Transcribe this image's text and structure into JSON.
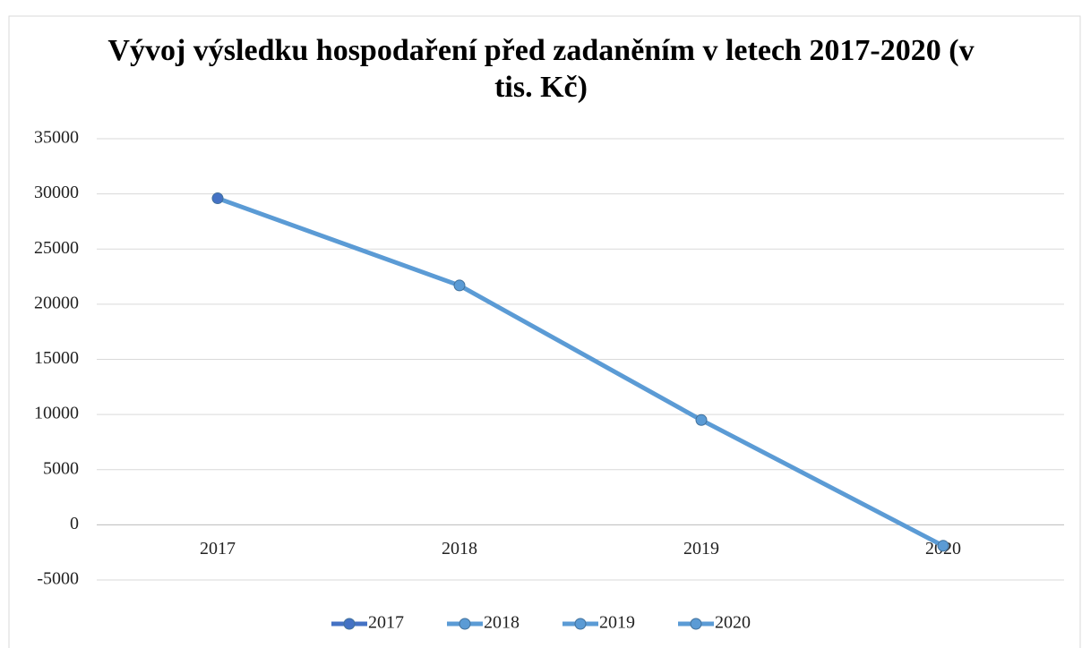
{
  "chart_data": {
    "type": "line",
    "title": "Vývoj výsledku hospodaření před zadaněním v letech 2017-2020 (v tis. Kč)",
    "categories": [
      "2017",
      "2018",
      "2019",
      "2020"
    ],
    "values": [
      29600,
      21700,
      9500,
      -1900
    ],
    "color": "#5b9bd5",
    "point_colors": [
      "#4472c4",
      "#5b9bd5",
      "#5b9bd5",
      "#5b9bd5"
    ],
    "ylim": [
      -5000,
      35000
    ],
    "yticks": [
      -5000,
      0,
      5000,
      10000,
      15000,
      20000,
      25000,
      30000,
      35000
    ],
    "grid": true,
    "legend": "bottom"
  }
}
